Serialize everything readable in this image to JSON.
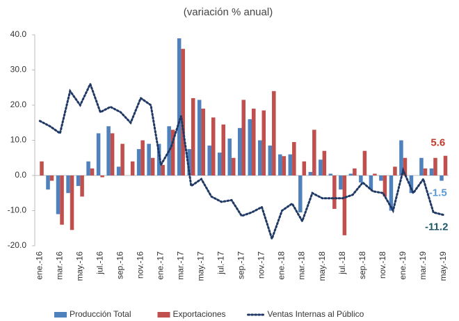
{
  "chart_data": {
    "type": "bar_line",
    "title": "(variación % anual)",
    "categories": [
      "ene.-16",
      null,
      "mar.-16",
      null,
      "may.-16",
      null,
      "jul.-16",
      null,
      "sep.-16",
      null,
      "nov.-16",
      null,
      "ene.-17",
      null,
      "mar.-17",
      null,
      "may.-17",
      null,
      "jul.-17",
      null,
      "sep.-17",
      null,
      "nov.-17",
      null,
      "ene.-18",
      null,
      "mar.-18",
      null,
      "may.-18",
      null,
      "jul.-18",
      null,
      "sep.-18",
      null,
      "nov.-18",
      null,
      "ene.-19",
      null,
      "mar.-19",
      null,
      "may.-19"
    ],
    "series": [
      {
        "name": "Producción Total",
        "type": "bar",
        "color": "#4f81bd",
        "values": [
          0,
          -4,
          -11,
          -5,
          -3,
          4,
          12,
          14,
          2.5,
          0,
          7.5,
          9,
          9,
          14,
          39,
          7.5,
          21.5,
          8.5,
          6.5,
          10.5,
          13.5,
          16,
          10,
          8.5,
          6,
          6,
          -10.5,
          1,
          4.5,
          0.5,
          -4,
          0.5,
          -2,
          -4,
          -1.5,
          -10,
          10,
          -5,
          5,
          2,
          -1.5
        ]
      },
      {
        "name": "Exportaciones",
        "type": "bar",
        "color": "#c0504d",
        "values": [
          4,
          -1.5,
          -14,
          -15.5,
          -6,
          2,
          -0.5,
          12,
          9,
          4,
          10,
          5,
          3,
          13,
          36,
          22,
          19,
          16.5,
          14.5,
          5,
          21.5,
          19,
          18.5,
          24,
          5.5,
          9.5,
          4,
          13,
          7,
          -9.5,
          -17,
          2,
          7,
          0.5,
          -6,
          2.5,
          5,
          0,
          2,
          5,
          5.6
        ]
      },
      {
        "name": "Ventas Internas al Público",
        "type": "line",
        "color": "#1f3864",
        "values": [
          15.5,
          14,
          12,
          24,
          20,
          26,
          18,
          19.5,
          18,
          15,
          22,
          20,
          3,
          8,
          17,
          -3,
          -1,
          -6,
          -7.5,
          -7,
          -11.5,
          -10.5,
          -9,
          -18,
          -10,
          -8,
          -13,
          -5,
          -6.5,
          -6.5,
          -6.5,
          -5.5,
          -2,
          -4.5,
          -5,
          -10,
          1.5,
          -5,
          -1,
          -10.5,
          -11.2
        ]
      }
    ],
    "ylim": [
      -20,
      40
    ],
    "yticks": [
      {
        "value": -20,
        "label": "-20.0"
      },
      {
        "value": -10,
        "label": "-10.0"
      },
      {
        "value": 0,
        "label": "0.0"
      },
      {
        "value": 10,
        "label": "10.0"
      },
      {
        "value": 20,
        "label": "20.0"
      },
      {
        "value": 30,
        "label": "30.0"
      },
      {
        "value": 40,
        "label": "40.0"
      }
    ],
    "grid": false,
    "legend": "bottom"
  }
}
